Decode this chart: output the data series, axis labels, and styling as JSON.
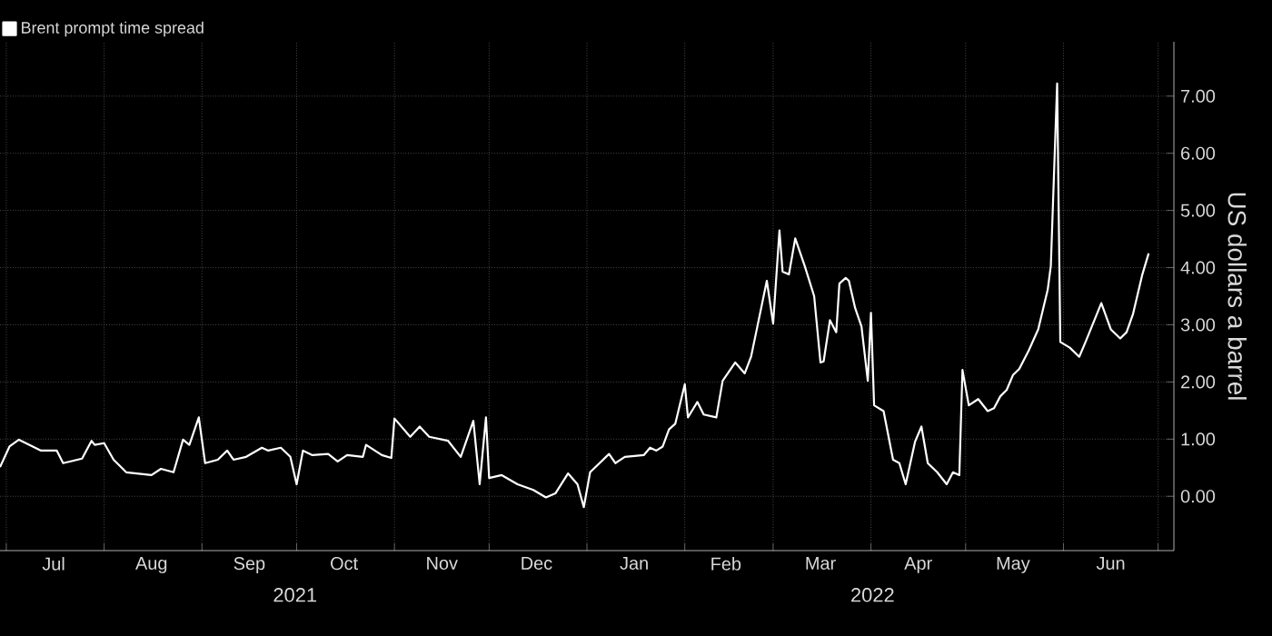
{
  "chart_data": {
    "type": "line",
    "ylabel": "US dollars a barrel",
    "legend": "top left",
    "grid": true,
    "line_style": "solid",
    "marker": "none",
    "xlim": [
      "2021-06-29",
      "2022-07-06"
    ],
    "ylim": [
      -0.95,
      7.95
    ],
    "yticks": [
      {
        "value": 0,
        "label": "0.00"
      },
      {
        "value": 1,
        "label": "1.00"
      },
      {
        "value": 2,
        "label": "2.00"
      },
      {
        "value": 3,
        "label": "3.00"
      },
      {
        "value": 4,
        "label": "4.00"
      },
      {
        "value": 5,
        "label": "5.00"
      },
      {
        "value": 6,
        "label": "6.00"
      },
      {
        "value": 7,
        "label": "7.00"
      }
    ],
    "xticks": [
      {
        "value": "2021-07-01",
        "label": null
      },
      {
        "value": "2021-08-01",
        "label": null
      },
      {
        "value": "2021-09-01",
        "label": null
      },
      {
        "value": "2021-10-01",
        "label": null
      },
      {
        "value": "2021-11-01",
        "label": null
      },
      {
        "value": "2021-12-01",
        "label": null
      },
      {
        "value": "2022-01-01",
        "label": null
      },
      {
        "value": "2022-02-01",
        "label": null
      },
      {
        "value": "2022-03-01",
        "label": null
      },
      {
        "value": "2022-04-01",
        "label": null
      },
      {
        "value": "2022-05-01",
        "label": null
      },
      {
        "value": "2022-06-01",
        "label": null
      },
      {
        "value": "2022-07-01",
        "label": null
      },
      {
        "value": "2021-07-16",
        "label": "Jul"
      },
      {
        "value": "2021-08-16",
        "label": "Aug"
      },
      {
        "value": "2021-09-16",
        "label": "Sep"
      },
      {
        "value": "2021-10-16",
        "label": "Oct"
      },
      {
        "value": "2021-11-16",
        "label": "Nov"
      },
      {
        "value": "2021-12-16",
        "label": "Dec"
      },
      {
        "value": "2022-01-16",
        "label": "Jan"
      },
      {
        "value": "2022-02-14",
        "label": "Feb"
      },
      {
        "value": "2022-03-16",
        "label": "Mar"
      },
      {
        "value": "2022-04-16",
        "label": "Apr"
      },
      {
        "value": "2022-05-16",
        "label": "May"
      },
      {
        "value": "2022-06-16",
        "label": "Jun"
      }
    ],
    "annotations": [
      "2021",
      "2022"
    ],
    "series": [
      {
        "name": "Brent prompt time spread",
        "color": "#ffffff",
        "x": [
          "2021-06-29",
          "2021-07-02",
          "2021-07-05",
          "2021-07-12",
          "2021-07-17",
          "2021-07-19",
          "2021-07-25",
          "2021-07-28",
          "2021-07-29",
          "2021-08-01",
          "2021-08-04",
          "2021-08-08",
          "2021-08-16",
          "2021-08-19",
          "2021-08-23",
          "2021-08-26",
          "2021-08-28",
          "2021-08-31",
          "2021-09-02",
          "2021-09-06",
          "2021-09-09",
          "2021-09-11",
          "2021-09-15",
          "2021-09-20",
          "2021-09-22",
          "2021-09-26",
          "2021-09-29",
          "2021-10-01",
          "2021-10-03",
          "2021-10-06",
          "2021-10-11",
          "2021-10-14",
          "2021-10-17",
          "2021-10-22",
          "2021-10-23",
          "2021-10-28",
          "2021-10-31",
          "2021-11-01",
          "2021-11-06",
          "2021-11-09",
          "2021-11-12",
          "2021-11-18",
          "2021-11-22",
          "2021-11-26",
          "2021-11-28",
          "2021-11-30",
          "2021-12-01",
          "2021-12-05",
          "2021-12-10",
          "2021-12-15",
          "2021-12-19",
          "2021-12-22",
          "2021-12-26",
          "2021-12-29",
          "2021-12-31",
          "2022-01-02",
          "2022-01-08",
          "2022-01-10",
          "2022-01-13",
          "2022-01-19",
          "2022-01-21",
          "2022-01-23",
          "2022-01-25",
          "2022-01-27",
          "2022-01-29",
          "2022-02-01",
          "2022-02-02",
          "2022-02-05",
          "2022-02-07",
          "2022-02-11",
          "2022-02-13",
          "2022-02-17",
          "2022-02-20",
          "2022-02-22",
          "2022-02-24",
          "2022-02-27",
          "2022-03-01",
          "2022-03-03",
          "2022-03-04",
          "2022-03-06",
          "2022-03-08",
          "2022-03-11",
          "2022-03-14",
          "2022-03-16",
          "2022-03-17",
          "2022-03-19",
          "2022-03-21",
          "2022-03-22",
          "2022-03-24",
          "2022-03-25",
          "2022-03-27",
          "2022-03-29",
          "2022-03-31",
          "2022-04-01",
          "2022-04-02",
          "2022-04-05",
          "2022-04-08",
          "2022-04-10",
          "2022-04-12",
          "2022-04-15",
          "2022-04-17",
          "2022-04-19",
          "2022-04-22",
          "2022-04-25",
          "2022-04-27",
          "2022-04-29",
          "2022-04-30",
          "2022-05-02",
          "2022-05-05",
          "2022-05-08",
          "2022-05-10",
          "2022-05-12",
          "2022-05-14",
          "2022-05-16",
          "2022-05-18",
          "2022-05-21",
          "2022-05-24",
          "2022-05-27",
          "2022-05-28",
          "2022-05-30",
          "2022-05-31",
          "2022-06-03",
          "2022-06-06",
          "2022-06-08",
          "2022-06-13",
          "2022-06-16",
          "2022-06-19",
          "2022-06-21",
          "2022-06-23",
          "2022-06-26",
          "2022-06-28"
        ],
        "values": [
          0.51,
          0.87,
          0.99,
          0.8,
          0.8,
          0.58,
          0.66,
          0.97,
          0.9,
          0.93,
          0.64,
          0.42,
          0.37,
          0.48,
          0.42,
          0.99,
          0.9,
          1.38,
          0.58,
          0.64,
          0.8,
          0.64,
          0.69,
          0.85,
          0.8,
          0.85,
          0.69,
          0.21,
          0.8,
          0.72,
          0.74,
          0.61,
          0.72,
          0.69,
          0.9,
          0.72,
          0.67,
          1.36,
          1.04,
          1.22,
          1.04,
          0.97,
          0.69,
          1.32,
          0.21,
          1.38,
          0.32,
          0.37,
          0.21,
          0.11,
          -0.02,
          0.05,
          0.4,
          0.21,
          -0.19,
          0.42,
          0.74,
          0.58,
          0.69,
          0.72,
          0.85,
          0.8,
          0.87,
          1.17,
          1.27,
          1.96,
          1.38,
          1.65,
          1.43,
          1.38,
          2.02,
          2.34,
          2.15,
          2.44,
          2.97,
          3.77,
          3.02,
          4.65,
          3.93,
          3.88,
          4.51,
          4.03,
          3.5,
          2.34,
          2.36,
          3.08,
          2.87,
          3.72,
          3.82,
          3.77,
          3.29,
          2.97,
          2.02,
          3.21,
          1.59,
          1.49,
          0.64,
          0.58,
          0.21,
          0.96,
          1.22,
          0.58,
          0.42,
          0.21,
          0.42,
          0.37,
          2.21,
          1.59,
          1.7,
          1.49,
          1.54,
          1.75,
          1.86,
          2.12,
          2.23,
          2.55,
          2.92,
          3.61,
          4.03,
          7.22,
          2.7,
          2.6,
          2.44,
          2.7,
          3.38,
          2.92,
          2.76,
          2.87,
          3.18,
          3.88,
          4.25
        ]
      }
    ]
  }
}
